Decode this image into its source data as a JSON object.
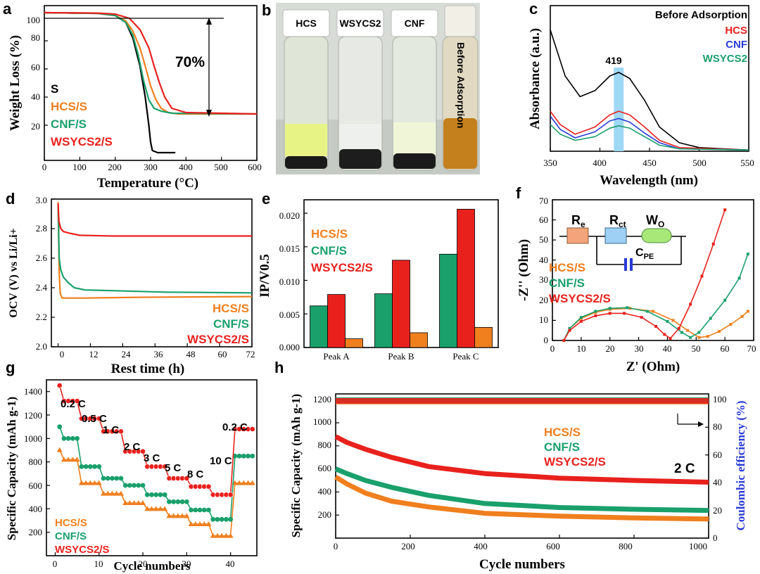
{
  "colors": {
    "S": "#000000",
    "HCS": "#f07f1e",
    "CNF": "#1aa06b",
    "WSYC": "#e8211d",
    "CNF_blue": "#2a3bd6",
    "band": "#9fd8f5"
  },
  "panel_letters": [
    "a",
    "b",
    "c",
    "d",
    "e",
    "f",
    "g",
    "h"
  ],
  "a": {
    "xlabel": "Temperature (°C)",
    "ylabel": "Weight Loss (%)",
    "xlim": [
      0,
      600
    ],
    "ylim": [
      0,
      105
    ],
    "xticks": [
      "0",
      "100",
      "200",
      "300",
      "400",
      "500",
      "600"
    ],
    "yticks": [
      "20",
      "40",
      "60",
      "80",
      "100"
    ],
    "annotation": "70%",
    "legend": [
      "S",
      "HCS/S",
      "CNF/S",
      "WSYCS2/S"
    ],
    "series": [
      {
        "name": "S",
        "x": [
          0,
          150,
          200,
          230,
          250,
          270,
          285,
          295,
          300,
          305,
          320,
          370
        ],
        "y": [
          100,
          99.5,
          98,
          93,
          82,
          62,
          40,
          20,
          8,
          2,
          0.5,
          0.5
        ]
      },
      {
        "name": "HCS/S",
        "x": [
          0,
          150,
          200,
          230,
          250,
          270,
          285,
          300,
          315,
          330,
          350,
          380,
          600
        ],
        "y": [
          100,
          99.5,
          98,
          94,
          87,
          75,
          62,
          48,
          38,
          32,
          29,
          28,
          28
        ]
      },
      {
        "name": "CNF/S",
        "x": [
          0,
          150,
          200,
          230,
          250,
          265,
          280,
          295,
          310,
          330,
          360,
          600
        ],
        "y": [
          100,
          99.5,
          98,
          93,
          84,
          70,
          52,
          38,
          32,
          30,
          28.5,
          28
        ]
      },
      {
        "name": "WSYCS2/S",
        "x": [
          0,
          150,
          200,
          240,
          270,
          295,
          310,
          325,
          340,
          360,
          400,
          600
        ],
        "y": [
          100,
          99.7,
          99,
          96,
          88,
          75,
          62,
          50,
          40,
          32,
          29,
          28
        ]
      }
    ]
  },
  "b": {
    "labels": [
      "HCS",
      "WSYCS2",
      "CNF",
      "Before Adsorption"
    ]
  },
  "c": {
    "xlabel": "Wavelength (nm)",
    "ylabel": "Absorbance (a.u.)",
    "xlim": [
      350,
      550
    ],
    "xticks": [
      "350",
      "400",
      "450",
      "500",
      "550"
    ],
    "peak_label": "419",
    "peak": 419,
    "legend": [
      "Before Adsorption",
      "HCS",
      "CNF",
      "WSYCS2"
    ],
    "series": [
      {
        "name": "Before Adsorption",
        "x": [
          350,
          365,
          380,
          395,
          410,
          419,
          430,
          445,
          460,
          480,
          500,
          550
        ],
        "y": [
          1.0,
          0.62,
          0.45,
          0.5,
          0.62,
          0.65,
          0.6,
          0.42,
          0.2,
          0.07,
          0.03,
          0.01
        ]
      },
      {
        "name": "HCS",
        "x": [
          350,
          360,
          375,
          395,
          410,
          419,
          430,
          445,
          460,
          480,
          550
        ],
        "y": [
          0.33,
          0.22,
          0.14,
          0.2,
          0.3,
          0.33,
          0.3,
          0.2,
          0.09,
          0.03,
          0.01
        ]
      },
      {
        "name": "CNF",
        "x": [
          350,
          360,
          375,
          395,
          410,
          419,
          430,
          445,
          460,
          480,
          550
        ],
        "y": [
          0.29,
          0.18,
          0.11,
          0.16,
          0.25,
          0.27,
          0.24,
          0.15,
          0.07,
          0.02,
          0.01
        ]
      },
      {
        "name": "WSYCS2",
        "x": [
          350,
          360,
          375,
          395,
          410,
          419,
          430,
          445,
          460,
          480,
          550
        ],
        "y": [
          0.22,
          0.14,
          0.09,
          0.12,
          0.19,
          0.21,
          0.19,
          0.12,
          0.05,
          0.02,
          0.01
        ]
      }
    ]
  },
  "d": {
    "xlabel": "Rest time (h)",
    "ylabel": "OCV (V) vs Li/Li+",
    "xlim": [
      -2,
      72
    ],
    "ylim": [
      2.0,
      3.0
    ],
    "xticks": [
      "0",
      "12",
      "24",
      "36",
      "48",
      "60",
      "72"
    ],
    "yticks": [
      "2.0",
      "2.2",
      "2.4",
      "2.6",
      "2.8",
      "3.0"
    ],
    "legend": [
      "HCS/S",
      "CNF/S",
      "WSYCS2/S"
    ],
    "series": [
      {
        "name": "HCS/S",
        "x": [
          0,
          0.4,
          0.8,
          1.5,
          3,
          10,
          30,
          72
        ],
        "y": [
          2.98,
          2.5,
          2.36,
          2.33,
          2.33,
          2.33,
          2.335,
          2.34
        ]
      },
      {
        "name": "CNF/S",
        "x": [
          0,
          0.4,
          1,
          2,
          4,
          6,
          10,
          20,
          40,
          72
        ],
        "y": [
          2.96,
          2.6,
          2.52,
          2.47,
          2.43,
          2.4,
          2.385,
          2.38,
          2.37,
          2.365
        ]
      },
      {
        "name": "WSYCS2/S",
        "x": [
          0,
          0.3,
          1,
          2,
          4,
          8,
          20,
          40,
          60,
          72
        ],
        "y": [
          2.97,
          2.85,
          2.8,
          2.78,
          2.77,
          2.755,
          2.75,
          2.75,
          2.75,
          2.75
        ]
      }
    ]
  },
  "e": {
    "ylabel": "IP/V0.5",
    "ylim": [
      0,
      0.022
    ],
    "yticks": [
      "0.000",
      "0.005",
      "0.010",
      "0.015",
      "0.020"
    ],
    "categories": [
      "Peak A",
      "Peak B",
      "Peak C"
    ],
    "legend": [
      "HCS/S",
      "CNF/S",
      "WSYCS2/S"
    ],
    "series": [
      {
        "name": "CNF/S",
        "values": [
          0.0062,
          0.008,
          0.0139
        ]
      },
      {
        "name": "WSYCS2/S",
        "values": [
          0.0079,
          0.013,
          0.0206
        ]
      },
      {
        "name": "HCS/S",
        "values": [
          0.0013,
          0.0022,
          0.003
        ]
      }
    ]
  },
  "f": {
    "xlabel": "Z' (Ohm)",
    "ylabel": "-Z'' (Ohm)",
    "xlim": [
      0,
      70
    ],
    "ylim": [
      0,
      70
    ],
    "xticks": [
      "0",
      "10",
      "20",
      "30",
      "40",
      "50",
      "60",
      "70"
    ],
    "yticks": [
      "0",
      "10",
      "20",
      "30",
      "40",
      "50",
      "60",
      "70"
    ],
    "legend": [
      "HCS/S",
      "CNF/S",
      "WSYCS2/S"
    ],
    "circuit": {
      "Re": "R",
      "Re_sub": "e",
      "Rct": "R",
      "Rct_sub": "ct",
      "Wo": "W",
      "Wo_sub": "O",
      "Cpe": "C",
      "Cpe_sub": "PE"
    },
    "series": [
      {
        "name": "HCS/S",
        "x": [
          4,
          6,
          10,
          15,
          20,
          27,
          35,
          42,
          47,
          51,
          54,
          58,
          62,
          66,
          68
        ],
        "y": [
          0,
          6,
          11,
          14,
          15.5,
          16,
          14.5,
          10,
          5,
          1.5,
          2,
          4.5,
          8,
          12,
          14.5
        ]
      },
      {
        "name": "CNF/S",
        "x": [
          4,
          6,
          10,
          15,
          20,
          26,
          33,
          40,
          45,
          48,
          51,
          55,
          60,
          65,
          68
        ],
        "y": [
          0,
          6,
          11.5,
          14.5,
          16,
          16.3,
          14.5,
          9.5,
          4,
          1.5,
          4,
          11,
          20,
          31,
          43
        ]
      },
      {
        "name": "WSYCS2/S",
        "x": [
          4,
          6,
          10,
          15,
          20,
          25,
          31,
          36,
          39,
          41,
          44,
          48,
          52,
          56,
          60
        ],
        "y": [
          0,
          5,
          9.5,
          12.3,
          13.5,
          13.5,
          11.5,
          7,
          3,
          1,
          6,
          18,
          32,
          48,
          65
        ]
      }
    ]
  },
  "g": {
    "xlabel": "Cycle numbers",
    "ylabel": "Specific Capacity (mAh g-1)",
    "xlim": [
      -2,
      46
    ],
    "ylim": [
      0,
      1500
    ],
    "xticks": [
      "0",
      "10",
      "20",
      "30",
      "40"
    ],
    "yticks": [
      "200",
      "400",
      "600",
      "800",
      "1000",
      "1200",
      "1400"
    ],
    "rates": [
      "0.2 C",
      "0.5 C",
      "1 C",
      "2 C",
      "3 C",
      "5 C",
      "8 C",
      "10 C",
      "0.2 C"
    ],
    "legend": [
      "HCS/S",
      "CNF/S",
      "WSYCS2/S"
    ],
    "series": [
      {
        "name": "HCS/S",
        "levels": [
          820,
          620,
          530,
          450,
          400,
          340,
          270,
          170,
          620
        ]
      },
      {
        "name": "CNF/S",
        "levels": [
          1000,
          760,
          660,
          600,
          520,
          460,
          390,
          310,
          850
        ]
      },
      {
        "name": "WSYCS2/S",
        "levels": [
          1320,
          1170,
          1060,
          890,
          760,
          660,
          590,
          520,
          1080
        ]
      }
    ]
  },
  "h": {
    "xlabel": "Cycle numbers",
    "ylabel": "Specific Capacity (mAh g-1)",
    "y2label": "Coulombic efficiency (%)",
    "xlim": [
      0,
      1000
    ],
    "ylim": [
      0,
      1250
    ],
    "y2lim": [
      0,
      104
    ],
    "xticks": [
      "0",
      "200",
      "400",
      "600",
      "800",
      "1000"
    ],
    "yticks": [
      "200",
      "400",
      "600",
      "800",
      "1000",
      "1200"
    ],
    "y2ticks": [
      "0",
      "20",
      "40",
      "60",
      "80",
      "100"
    ],
    "annotation": "2 C",
    "legend": [
      "HCS/S",
      "CNF/S",
      "WSYCS2/S"
    ],
    "series": [
      {
        "name": "HCS/S",
        "x": [
          0,
          30,
          80,
          150,
          250,
          400,
          600,
          800,
          1000
        ],
        "y": [
          530,
          470,
          390,
          320,
          270,
          215,
          190,
          175,
          165
        ]
      },
      {
        "name": "CNF/S",
        "x": [
          0,
          30,
          80,
          150,
          250,
          400,
          600,
          800,
          1000
        ],
        "y": [
          600,
          560,
          500,
          440,
          370,
          300,
          265,
          250,
          240
        ]
      },
      {
        "name": "WSYCS2/S",
        "x": [
          0,
          30,
          80,
          150,
          250,
          400,
          600,
          800,
          1000
        ],
        "y": [
          880,
          830,
          770,
          700,
          620,
          560,
          520,
          500,
          485
        ]
      }
    ],
    "ce": {
      "HCS/S": 98.5,
      "CNF/S": 99.5,
      "WSYCS2/S": 99.0
    }
  }
}
